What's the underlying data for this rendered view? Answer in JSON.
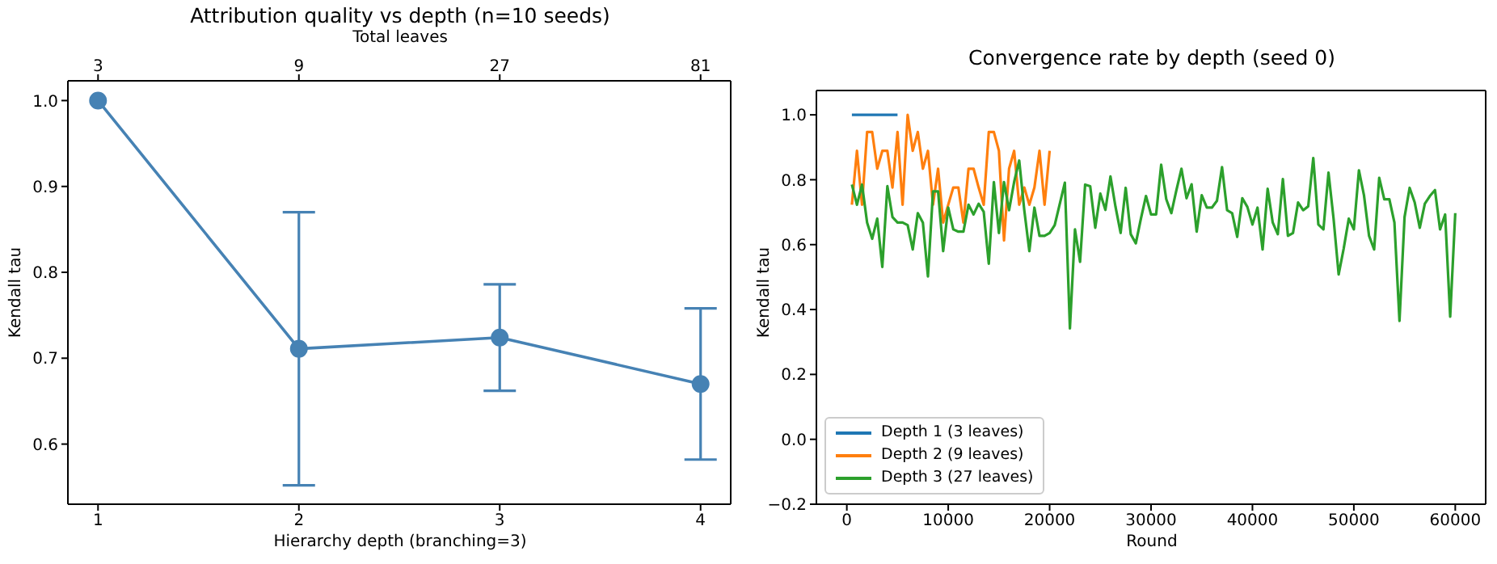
{
  "chart_data": [
    {
      "type": "line",
      "title": "Attribution quality vs depth (n=10 seeds)",
      "xlabel": "Hierarchy depth (branching=3)",
      "ylabel": "Kendall tau",
      "x2label": "Total leaves",
      "x": [
        1,
        2,
        3,
        4
      ],
      "xlim": [
        0.85,
        4.15
      ],
      "xticks": [
        1,
        2,
        3,
        4
      ],
      "x2lim": [
        2.544,
        95.5
      ],
      "log": "x2",
      "x2ticks": [
        3,
        9,
        27,
        81
      ],
      "ylim": [
        0.53,
        1.023
      ],
      "yticks": [
        {
          "value": 0.6,
          "label": "0.6"
        },
        {
          "value": 0.7,
          "label": "0.7"
        },
        {
          "value": 0.8,
          "label": "0.8"
        },
        {
          "value": 0.9,
          "label": "0.9"
        },
        {
          "value": 1.0,
          "label": "1.0"
        }
      ],
      "series": [
        {
          "color": "#4682b4",
          "values": [
            1.0,
            0.711,
            0.724,
            0.67
          ],
          "errors": [
            null,
            [
              0.552,
              0.87
            ],
            [
              0.662,
              0.786
            ],
            [
              0.582,
              0.758
            ]
          ]
        }
      ],
      "marker": "circle",
      "grid": false
    },
    {
      "type": "line",
      "title": "Convergence rate by depth (seed 0)",
      "xlabel": "Round",
      "ylabel": "Kendall tau",
      "xlim": [
        -3000,
        63000
      ],
      "xticks": [
        0,
        10000,
        20000,
        30000,
        40000,
        50000,
        60000
      ],
      "ylim": [
        -0.2,
        1.075
      ],
      "yticks": [
        {
          "value": -0.2,
          "label": "−0.2"
        },
        {
          "value": 0.0,
          "label": "0.0"
        },
        {
          "value": 0.2,
          "label": "0.2"
        },
        {
          "value": 0.4,
          "label": "0.4"
        },
        {
          "value": 0.6,
          "label": "0.6"
        },
        {
          "value": 0.8,
          "label": "0.8"
        },
        {
          "value": 1.0,
          "label": "1.0"
        }
      ],
      "series": [
        {
          "name": "Depth 1 (3 leaves)",
          "color": "#1f77b4",
          "x": [
            500,
            1000,
            1500,
            2000,
            2500,
            3000,
            3500,
            4000,
            4500,
            5000
          ],
          "values": [
            1,
            1,
            1,
            1,
            1,
            1,
            1,
            1,
            1,
            1
          ]
        },
        {
          "name": "Depth 2 (9 leaves)",
          "color": "#ff7f0e",
          "x": [
            500,
            1000,
            1500,
            2000,
            2500,
            3000,
            3500,
            4000,
            4500,
            5000,
            5500,
            6000,
            6500,
            7000,
            7500,
            8000,
            8500,
            9000,
            9500,
            10000,
            10500,
            11000,
            11500,
            12000,
            12500,
            13000,
            13500,
            14000,
            14500,
            15000,
            15500,
            16000,
            16500,
            17000,
            17500,
            18000,
            18500,
            19000,
            19500,
            20000
          ],
          "values": [
            0.723,
            0.889,
            0.723,
            0.947,
            0.947,
            0.834,
            0.889,
            0.889,
            0.776,
            0.947,
            0.723,
            1.0,
            0.889,
            0.947,
            0.834,
            0.889,
            0.723,
            0.834,
            0.668,
            0.723,
            0.776,
            0.776,
            0.668,
            0.834,
            0.834,
            0.776,
            0.723,
            0.947,
            0.947,
            0.889,
            0.613,
            0.834,
            0.889,
            0.723,
            0.776,
            0.723,
            0.776,
            0.889,
            0.723,
            0.889
          ]
        },
        {
          "name": "Depth 3 (27 leaves)",
          "color": "#2ca02c",
          "x": [
            500,
            1000,
            1500,
            2000,
            2500,
            3000,
            3500,
            4000,
            4500,
            5000,
            5500,
            6000,
            6500,
            7000,
            7500,
            8000,
            8500,
            9000,
            9500,
            10000,
            10500,
            11000,
            11500,
            12000,
            12500,
            13000,
            13500,
            14000,
            14500,
            15000,
            15500,
            16000,
            16500,
            17000,
            17500,
            18000,
            18500,
            19000,
            19500,
            20000,
            20500,
            21500,
            22000,
            22500,
            23000,
            23500,
            24000,
            24500,
            25000,
            25500,
            26000,
            26500,
            27000,
            27500,
            28000,
            28500,
            29000,
            29500,
            30000,
            30500,
            31000,
            31500,
            32000,
            32500,
            33000,
            33500,
            34000,
            34500,
            35000,
            35500,
            36000,
            36500,
            37000,
            37500,
            38000,
            38500,
            39000,
            39500,
            40000,
            40500,
            41000,
            41500,
            42000,
            42500,
            43000,
            43500,
            44000,
            44500,
            45000,
            45500,
            46000,
            46500,
            47000,
            47500,
            48000,
            48500,
            49000,
            49500,
            50000,
            50500,
            51000,
            51500,
            52000,
            52500,
            53000,
            53500,
            54000,
            54500,
            55000,
            55500,
            56000,
            56500,
            57000,
            57500,
            58000,
            58500,
            59000,
            59500,
            60000
          ],
          "values": [
            0.785,
            0.723,
            0.785,
            0.668,
            0.618,
            0.68,
            0.531,
            0.78,
            0.685,
            0.668,
            0.668,
            0.66,
            0.585,
            0.697,
            0.668,
            0.502,
            0.764,
            0.764,
            0.58,
            0.714,
            0.647,
            0.64,
            0.64,
            0.723,
            0.693,
            0.726,
            0.701,
            0.541,
            0.793,
            0.636,
            0.793,
            0.706,
            0.793,
            0.859,
            0.706,
            0.58,
            0.714,
            0.627,
            0.627,
            0.636,
            0.66,
            0.791,
            0.342,
            0.647,
            0.547,
            0.785,
            0.78,
            0.652,
            0.757,
            0.707,
            0.81,
            0.716,
            0.636,
            0.775,
            0.632,
            0.604,
            0.68,
            0.75,
            0.693,
            0.693,
            0.846,
            0.74,
            0.697,
            0.768,
            0.834,
            0.743,
            0.786,
            0.64,
            0.752,
            0.714,
            0.714,
            0.735,
            0.839,
            0.706,
            0.697,
            0.624,
            0.743,
            0.716,
            0.662,
            0.714,
            0.585,
            0.772,
            0.668,
            0.632,
            0.802,
            0.627,
            0.636,
            0.73,
            0.706,
            0.718,
            0.867,
            0.662,
            0.647,
            0.822,
            0.68,
            0.508,
            0.588,
            0.68,
            0.647,
            0.829,
            0.752,
            0.627,
            0.585,
            0.806,
            0.74,
            0.74,
            0.668,
            0.365,
            0.685,
            0.775,
            0.73,
            0.652,
            0.726,
            0.75,
            0.768,
            0.647,
            0.693,
            0.378,
            0.697
          ]
        }
      ],
      "marker": "none",
      "grid": false,
      "legend": "bottom left"
    }
  ]
}
